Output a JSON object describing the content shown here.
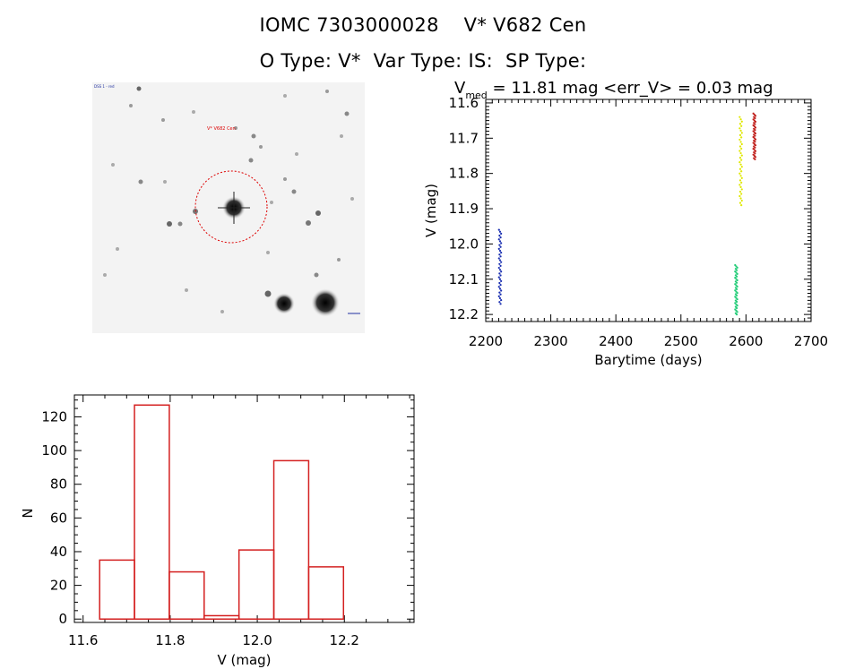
{
  "header": {
    "line1": "IOMC 7303000028    V* V682 Cen",
    "line2": "O Type: V*  Var Type: IS:  SP Type:"
  },
  "image_panel": {
    "star_label": "V* V682 Cen",
    "corner_label": "DSS 1 - red"
  },
  "chart_data": [
    {
      "type": "scatter",
      "title_prefix": "V",
      "title_subscript": "med",
      "title_rest": " = 11.81 mag <err_V> = 0.03 mag",
      "xlabel": "Barytime (days)",
      "ylabel": "V (mag)",
      "xlim": [
        2200,
        2700
      ],
      "ylim": [
        12.22,
        11.59
      ],
      "y_inverted": true,
      "xticks": [
        2200,
        2300,
        2400,
        2500,
        2600,
        2700
      ],
      "yticks": [
        "11.6",
        "11.7",
        "11.8",
        "11.9",
        "12.0",
        "12.1",
        "12.2"
      ],
      "series": [
        {
          "color": "#1a2fb0",
          "x": 2222,
          "y_range": [
            11.96,
            12.17
          ]
        },
        {
          "color": "#22cc77",
          "x": 2585,
          "y_range": [
            12.06,
            12.2
          ]
        },
        {
          "color": "#e0e800",
          "x": 2592,
          "y_range": [
            11.64,
            11.89
          ]
        },
        {
          "color": "#c0201c",
          "x": 2613,
          "y_range": [
            11.63,
            11.76
          ]
        }
      ]
    },
    {
      "type": "bar",
      "xlabel": "V (mag)",
      "ylabel": "N",
      "xlim": [
        11.58,
        12.36
      ],
      "ylim": [
        -2,
        133
      ],
      "xticks": [
        "11.6",
        "11.8",
        "12.0",
        "12.2"
      ],
      "yticks": [
        0,
        20,
        40,
        60,
        80,
        100,
        120
      ],
      "bin_edges": [
        11.638,
        11.718,
        11.798,
        11.878,
        11.958,
        12.038,
        12.118,
        12.198
      ],
      "values": [
        35,
        127,
        28,
        2,
        41,
        94,
        31
      ],
      "color": "#d42020"
    }
  ]
}
